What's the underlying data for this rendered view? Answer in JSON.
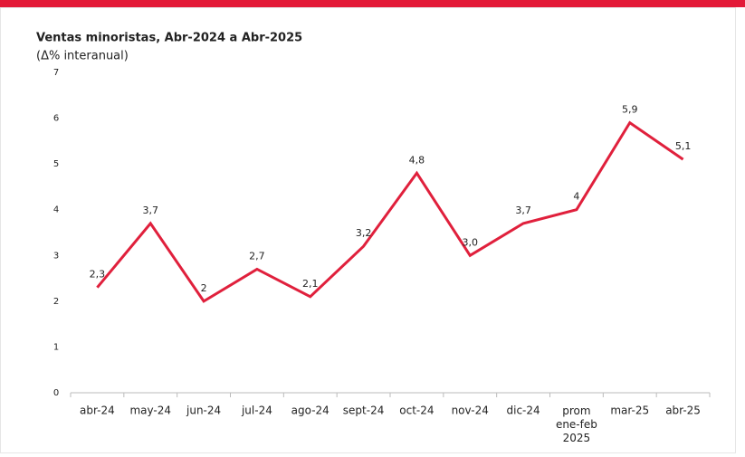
{
  "chart_data": {
    "type": "line",
    "title": "Ventas minoristas, Abr-2024 a Abr-2025",
    "subtitle": "(Δ% interanual)",
    "categories": [
      "abr-24",
      "may-24",
      "jun-24",
      "jul-24",
      "ago-24",
      "sept-24",
      "oct-24",
      "nov-24",
      "dic-24",
      "prom ene-feb 2025",
      "mar-25",
      "abr-25"
    ],
    "series": [
      {
        "name": "Ventas minoristas",
        "color": "#e0203c",
        "values": [
          2.3,
          3.7,
          2,
          2.7,
          2.1,
          3.2,
          4.8,
          3.0,
          3.7,
          4,
          5.9,
          5.1
        ],
        "value_labels": [
          "2,3",
          "3,7",
          "2",
          "2,7",
          "2,1",
          "3,2",
          "4,8",
          "3,0",
          "3,7",
          "4",
          "5,9",
          "5,1"
        ]
      }
    ],
    "ylim": [
      0,
      7
    ],
    "yticks": [
      0,
      1,
      2,
      3,
      4,
      5,
      6,
      7
    ],
    "grid": false
  }
}
